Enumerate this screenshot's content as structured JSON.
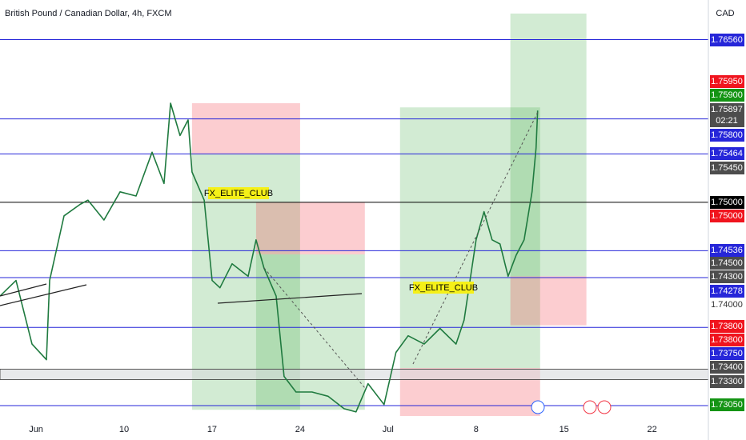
{
  "chart_data": {
    "type": "line",
    "title": "British Pound / Canadian Dollar, 4h, FXCM",
    "currency": "CAD",
    "countdown": "02:21",
    "xlim": [
      -2.05,
      38.2
    ],
    "ylim": [
      1.7272,
      1.7694
    ],
    "xticks": [
      {
        "value": 0,
        "label": "Jun"
      },
      {
        "value": 5,
        "label": "10"
      },
      {
        "value": 10,
        "label": "17"
      },
      {
        "value": 15,
        "label": "24"
      },
      {
        "value": 20,
        "label": "Jul"
      },
      {
        "value": 25,
        "label": "8"
      },
      {
        "value": 30,
        "label": "15"
      },
      {
        "value": 35,
        "label": "22"
      }
    ],
    "series": [
      {
        "color": "#1f7a3f",
        "x": [
          -2.05,
          -1.14,
          -0.23,
          0.59,
          0.77,
          1.59,
          2.5,
          2.95,
          3.86,
          4.77,
          5.68,
          6.59,
          7.27,
          7.64,
          8.18,
          8.64,
          8.86,
          9.55,
          10,
          10.45,
          11.14,
          12.05,
          12.5,
          12.95,
          13.64,
          14.09,
          14.77,
          15.68,
          16.59,
          17.5,
          18.18,
          18.86,
          19.77,
          20.45,
          21.14,
          22.05,
          22.95,
          23.86,
          24.32,
          25,
          25.45,
          25.91,
          26.36,
          26.82,
          27.27,
          27.73,
          28.18,
          28.41,
          28.5
        ],
        "values": [
          1.741,
          1.7425,
          1.7364,
          1.7349,
          1.7425,
          1.7487,
          1.7498,
          1.7502,
          1.7483,
          1.751,
          1.7506,
          1.7548,
          1.7518,
          1.7595,
          1.7564,
          1.7579,
          1.7529,
          1.7502,
          1.7425,
          1.7418,
          1.7441,
          1.7429,
          1.7464,
          1.7437,
          1.741,
          1.7333,
          1.7318,
          1.7318,
          1.7314,
          1.7302,
          1.7299,
          1.7326,
          1.7306,
          1.7356,
          1.7372,
          1.7364,
          1.7379,
          1.7364,
          1.7387,
          1.7464,
          1.7491,
          1.7464,
          1.746,
          1.7429,
          1.7449,
          1.7464,
          1.751,
          1.7552,
          1.7588
        ]
      }
    ],
    "levels": [
      {
        "value": 1.7656,
        "color": "#2626d9"
      },
      {
        "value": 1.758,
        "color": "#2626d9"
      },
      {
        "value": 1.75464,
        "color": "#2626d9"
      },
      {
        "value": 1.75,
        "color": "#000000"
      },
      {
        "value": 1.74536,
        "color": "#2626d9"
      },
      {
        "value": 1.74278,
        "color": "#2626d9"
      },
      {
        "value": 1.738,
        "color": "#2626d9"
      },
      {
        "value": 1.7305,
        "color": "#2626d9"
      }
    ],
    "band": [
      1.733,
      1.734
    ],
    "zones": [
      {
        "x": [
          8.86,
          15
        ],
        "top": 1.7595,
        "mid": 1.7546,
        "bottom": 1.7301,
        "upper_color": "#f23645",
        "lower_color": "#4caf50"
      },
      {
        "x": [
          12.5,
          18.68
        ],
        "top": 1.75,
        "mid": 1.745,
        "bottom": 1.7301,
        "upper_color": "#f23645",
        "lower_color": "#4caf50"
      },
      {
        "x": [
          20.68,
          28.64
        ],
        "top": 1.7591,
        "mid": 1.7341,
        "bottom": 1.7295,
        "upper_color": "#4caf50",
        "lower_color": "#f23645"
      },
      {
        "x": [
          26.95,
          31.27
        ],
        "top": 1.7681,
        "mid": 1.7429,
        "bottom": 1.7382,
        "upper_color": "#4caf50",
        "lower_color": "#f23645"
      }
    ],
    "annotations": [
      "FX_ELITE_CLUB",
      "FX_ELITE_CLUB"
    ],
    "price_labels": [
      {
        "value": 1.7656,
        "label": "1.76560",
        "bg": "#2626d9",
        "fg": "#ffffff"
      },
      {
        "value": 1.7595,
        "label": "1.75950",
        "bg": "#f0141e",
        "fg": "#ffffff"
      },
      {
        "value": 1.759,
        "label": "1.75900",
        "bg": "#149414",
        "fg": "#ffffff"
      },
      {
        "value": 1.75897,
        "label": "1.75897",
        "bg": "#4d4d4d",
        "fg": "#ffffff"
      },
      {
        "value": 1.758,
        "label": "1.75800",
        "bg": "#2626d9",
        "fg": "#ffffff"
      },
      {
        "value": 1.75464,
        "label": "1.75464",
        "bg": "#2626d9",
        "fg": "#ffffff"
      },
      {
        "value": 1.7545,
        "label": "1.75450",
        "bg": "#4d4d4d",
        "fg": "#ffffff"
      },
      {
        "value": 1.75,
        "label": "1.75000",
        "bg": "#000000",
        "fg": "#ffffff"
      },
      {
        "value": 1.75,
        "label": "1.75000",
        "bg": "#f0141e",
        "fg": "#ffffff"
      },
      {
        "value": 1.74536,
        "label": "1.74536",
        "bg": "#2626d9",
        "fg": "#ffffff"
      },
      {
        "value": 1.745,
        "label": "1.74500",
        "bg": "#4d4d4d",
        "fg": "#ffffff"
      },
      {
        "value": 1.743,
        "label": "1.74300",
        "bg": "#4d4d4d",
        "fg": "#ffffff"
      },
      {
        "value": 1.74278,
        "label": "1.74278",
        "bg": "#2626d9",
        "fg": "#ffffff"
      },
      {
        "value": 1.74,
        "label": "1.74000",
        "bg": "#ffffff",
        "fg": "#333333"
      },
      {
        "value": 1.738,
        "label": "1.73800",
        "bg": "#f0141e",
        "fg": "#ffffff"
      },
      {
        "value": 1.738,
        "label": "1.73800",
        "bg": "#f0141e",
        "fg": "#ffffff"
      },
      {
        "value": 1.7375,
        "label": "1.73750",
        "bg": "#2626d9",
        "fg": "#ffffff"
      },
      {
        "value": 1.734,
        "label": "1.73400",
        "bg": "#4d4d4d",
        "fg": "#ffffff"
      },
      {
        "value": 1.733,
        "label": "1.73300",
        "bg": "#4d4d4d",
        "fg": "#ffffff"
      },
      {
        "value": 1.7305,
        "label": "1.73050",
        "bg": "#149414",
        "fg": "#ffffff"
      }
    ]
  }
}
